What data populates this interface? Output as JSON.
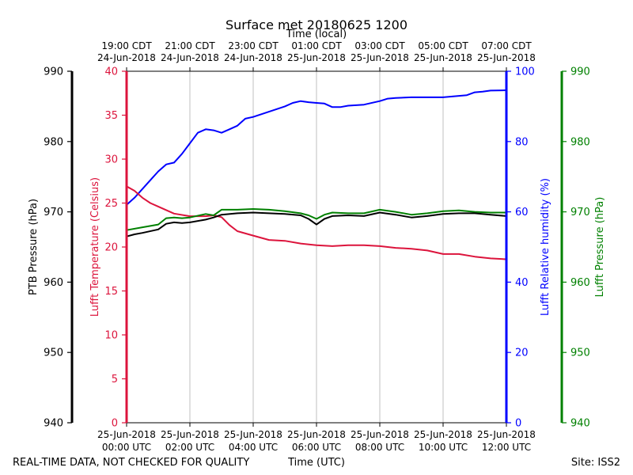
{
  "chart_data": {
    "type": "line",
    "title": "Surface met 20180625 1200",
    "top_axis_label": "Time (local)",
    "xlabel": "Time (UTC)",
    "footer_left": "REAL-TIME DATA, NOT CHECKED FOR QUALITY",
    "footer_right": "Site: ISS2",
    "x_range_hours": [
      0,
      12
    ],
    "grid": true,
    "bottom_ticks": [
      {
        "hour": 0,
        "line1": "25-Jun-2018",
        "line2": "00:00 UTC"
      },
      {
        "hour": 2,
        "line1": "25-Jun-2018",
        "line2": "02:00 UTC"
      },
      {
        "hour": 4,
        "line1": "25-Jun-2018",
        "line2": "04:00 UTC"
      },
      {
        "hour": 6,
        "line1": "25-Jun-2018",
        "line2": "06:00 UTC"
      },
      {
        "hour": 8,
        "line1": "25-Jun-2018",
        "line2": "08:00 UTC"
      },
      {
        "hour": 10,
        "line1": "25-Jun-2018",
        "line2": "10:00 UTC"
      },
      {
        "hour": 12,
        "line1": "25-Jun-2018",
        "line2": "12:00 UTC"
      }
    ],
    "top_ticks": [
      {
        "hour": 0,
        "line1": "19:00 CDT",
        "line2": "24-Jun-2018"
      },
      {
        "hour": 2,
        "line1": "21:00 CDT",
        "line2": "24-Jun-2018"
      },
      {
        "hour": 4,
        "line1": "23:00 CDT",
        "line2": "24-Jun-2018"
      },
      {
        "hour": 6,
        "line1": "01:00 CDT",
        "line2": "25-Jun-2018"
      },
      {
        "hour": 8,
        "line1": "03:00 CDT",
        "line2": "25-Jun-2018"
      },
      {
        "hour": 10,
        "line1": "05:00 CDT",
        "line2": "25-Jun-2018"
      },
      {
        "hour": 12,
        "line1": "07:00 CDT",
        "line2": "25-Jun-2018"
      }
    ],
    "axes": [
      {
        "id": "ptb",
        "label": "PTB Pressure (hPa)",
        "color": "#000000",
        "range": [
          940,
          990
        ],
        "ticks": [
          940,
          950,
          960,
          970,
          980,
          990
        ]
      },
      {
        "id": "temp",
        "label": "Lufft Temperature (Celsius)",
        "color": "#dc143c",
        "range": [
          0,
          40
        ],
        "ticks": [
          0,
          5,
          10,
          15,
          20,
          25,
          30,
          35,
          40
        ]
      },
      {
        "id": "rh",
        "label": "Lufft Relative humidity (%)",
        "color": "#0000ff",
        "range": [
          0,
          100
        ],
        "ticks": [
          0,
          20,
          40,
          60,
          80,
          100
        ]
      },
      {
        "id": "lp",
        "label": "Lufft Pressure (hPa)",
        "color": "#008000",
        "range": [
          940,
          990
        ],
        "ticks": [
          940,
          950,
          960,
          970,
          980,
          990
        ]
      }
    ],
    "series": [
      {
        "name": "Lufft Relative humidity",
        "axis": "rh",
        "color": "#0000ff",
        "x": [
          0,
          0.25,
          0.5,
          0.75,
          1.0,
          1.25,
          1.5,
          1.75,
          2.0,
          2.25,
          2.5,
          2.75,
          3.0,
          3.25,
          3.5,
          3.75,
          4.0,
          4.5,
          5.0,
          5.25,
          5.5,
          5.75,
          6.0,
          6.25,
          6.5,
          6.75,
          7.0,
          7.5,
          8.0,
          8.25,
          8.5,
          9.0,
          9.5,
          10.0,
          10.5,
          10.75,
          11.0,
          11.25,
          11.5,
          12.0
        ],
        "y": [
          62,
          64,
          66.5,
          69,
          71.5,
          73.5,
          74,
          76.5,
          79.5,
          82.5,
          83.5,
          83.2,
          82.5,
          83.5,
          84.5,
          86.5,
          87,
          88.5,
          90,
          91,
          91.5,
          91.2,
          91,
          90.8,
          89.8,
          89.8,
          90.2,
          90.5,
          91.5,
          92.2,
          92.4,
          92.6,
          92.6,
          92.6,
          93,
          93.2,
          94,
          94.2,
          94.5,
          94.6
        ]
      },
      {
        "name": "Lufft Temperature",
        "axis": "temp",
        "color": "#dc143c",
        "x": [
          0,
          0.25,
          0.5,
          0.75,
          1.0,
          1.5,
          2.0,
          2.5,
          2.75,
          3.0,
          3.25,
          3.5,
          4.0,
          4.5,
          5.0,
          5.5,
          6.0,
          6.5,
          7.0,
          7.5,
          8.0,
          8.5,
          9.0,
          9.5,
          10.0,
          10.5,
          11.0,
          11.5,
          12.0
        ],
        "y": [
          26.9,
          26.4,
          25.6,
          25.0,
          24.6,
          23.8,
          23.5,
          23.5,
          23.6,
          23.4,
          22.5,
          21.8,
          21.3,
          20.8,
          20.7,
          20.4,
          20.2,
          20.1,
          20.2,
          20.2,
          20.1,
          19.9,
          19.8,
          19.6,
          19.2,
          19.2,
          18.9,
          18.7,
          18.6
        ]
      },
      {
        "name": "Lufft Pressure",
        "axis": "lp",
        "color": "#008000",
        "x": [
          0,
          0.5,
          1.0,
          1.25,
          1.5,
          1.75,
          2.0,
          2.5,
          2.75,
          3.0,
          3.5,
          4.0,
          4.5,
          5.0,
          5.5,
          5.75,
          6.0,
          6.25,
          6.5,
          7.0,
          7.5,
          8.0,
          8.5,
          9.0,
          9.5,
          10.0,
          10.5,
          11.0,
          11.5,
          12.0
        ],
        "y": [
          967.4,
          967.8,
          968.2,
          969.1,
          969.2,
          969.1,
          969.2,
          969.7,
          969.5,
          970.3,
          970.3,
          970.4,
          970.3,
          970.1,
          969.8,
          969.5,
          969.0,
          969.6,
          969.9,
          969.8,
          969.8,
          970.3,
          970.0,
          969.6,
          969.8,
          970.1,
          970.2,
          970.0,
          969.9,
          969.9
        ]
      },
      {
        "name": "PTB Pressure",
        "axis": "ptb",
        "color": "#000000",
        "x": [
          0,
          0.25,
          0.5,
          1.0,
          1.25,
          1.5,
          1.75,
          2.0,
          2.5,
          2.75,
          3.0,
          3.5,
          4.0,
          4.5,
          5.0,
          5.5,
          5.75,
          6.0,
          6.25,
          6.5,
          7.0,
          7.5,
          8.0,
          8.5,
          9.0,
          9.5,
          10.0,
          10.5,
          11.0,
          11.5,
          12.0
        ],
        "y": [
          966.5,
          966.8,
          967.0,
          967.5,
          968.3,
          968.5,
          968.4,
          968.5,
          968.9,
          969.2,
          969.6,
          969.8,
          969.9,
          969.8,
          969.7,
          969.5,
          969.0,
          968.2,
          969.0,
          969.4,
          969.5,
          969.4,
          969.9,
          969.6,
          969.2,
          969.4,
          969.7,
          969.8,
          969.8,
          969.6,
          969.4
        ]
      }
    ]
  }
}
